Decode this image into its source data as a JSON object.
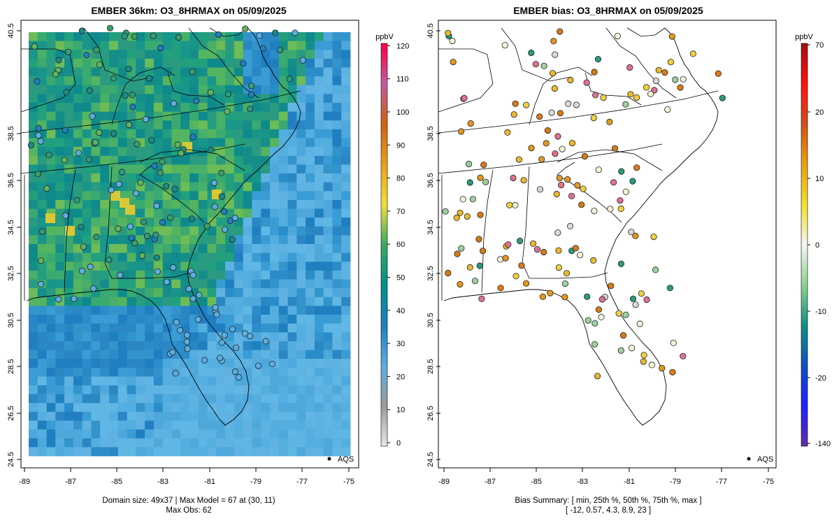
{
  "left_panel": {
    "title": "EMBER 36km: O3_8HRMAX on 05/09/2025",
    "x_ticks": [
      "-89",
      "-87",
      "-85",
      "-83",
      "-81",
      "-79",
      "-77",
      "-75"
    ],
    "y_ticks": [
      "24.5",
      "26.5",
      "28.5",
      "30.5",
      "32.5",
      "34.5",
      "36.5",
      "38.5",
      "40.5"
    ],
    "legend_label": "AQS",
    "footer_line1": "Domain size: 49x37 | Max Model = 67 at (30, 11)",
    "footer_line2": "Max Obs: 62",
    "colorbar": {
      "unit": "ppbV",
      "range": [
        0,
        120
      ],
      "labels": [
        "0",
        "10",
        "20",
        "30",
        "40",
        "50",
        "60",
        "70",
        "80",
        "90",
        "100",
        "110",
        "120"
      ],
      "stops": [
        "#e8e8e8",
        "#9a9a9a",
        "#5cace0",
        "#1f7fc0",
        "#00908a",
        "#3aaa60",
        "#f0e040",
        "#e8a020",
        "#d06010",
        "#c05aa0",
        "#ff0040"
      ]
    }
  },
  "right_panel": {
    "title": "EMBER bias: O3_8HRMAX on 05/09/2025",
    "x_ticks": [
      "-89",
      "-87",
      "-85",
      "-83",
      "-81",
      "-79",
      "-77",
      "-75"
    ],
    "y_ticks": [
      "24.5",
      "26.5",
      "28.5",
      "30.5",
      "32.5",
      "34.5",
      "36.5",
      "38.5",
      "40.5"
    ],
    "legend_label": "AQS",
    "footer_line1": "Bias Summary: [ min, 25th %, 50th %, 75th %, max ]",
    "footer_line2": "[ -12,   0.57,   4.3,   8.9,   23 ]",
    "colorbar": {
      "unit": "ppbV",
      "labels": [
        "70",
        "20",
        "10",
        "0",
        "-10",
        "-20",
        "-140"
      ],
      "stops": [
        "#a01010",
        "#ff1010",
        "#d0501a",
        "#e8a010",
        "#f0e030",
        "#f4f4f4",
        "#90d090",
        "#109080",
        "#1050c0",
        "#2020ff",
        "#6030a0"
      ]
    }
  }
}
